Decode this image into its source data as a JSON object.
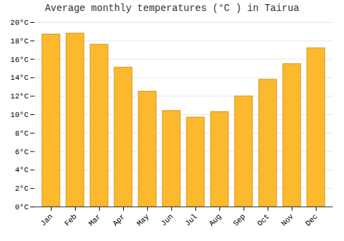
{
  "chart_data": {
    "type": "bar",
    "title": "Average monthly temperatures (°C ) in Tairua",
    "categories": [
      "Jan",
      "Feb",
      "Mar",
      "Apr",
      "May",
      "Jun",
      "Jul",
      "Aug",
      "Sep",
      "Oct",
      "Nov",
      "Dec"
    ],
    "values": [
      18.7,
      18.8,
      17.6,
      15.1,
      12.5,
      10.4,
      9.7,
      10.3,
      12.0,
      13.8,
      15.5,
      17.2
    ],
    "color": "#FDB92E",
    "ylim": [
      0,
      20
    ],
    "yticks": [
      {
        "value": 0,
        "label": "0°C"
      },
      {
        "value": 2,
        "label": "2°C"
      },
      {
        "value": 4,
        "label": "4°C"
      },
      {
        "value": 6,
        "label": "6°C"
      },
      {
        "value": 8,
        "label": "8°C"
      },
      {
        "value": 10,
        "label": "10°C"
      },
      {
        "value": 12,
        "label": "12°C"
      },
      {
        "value": 14,
        "label": "14°C"
      },
      {
        "value": 16,
        "label": "16°C"
      },
      {
        "value": 18,
        "label": "18°C"
      },
      {
        "value": 20,
        "label": "20°C"
      }
    ],
    "grid": true
  }
}
